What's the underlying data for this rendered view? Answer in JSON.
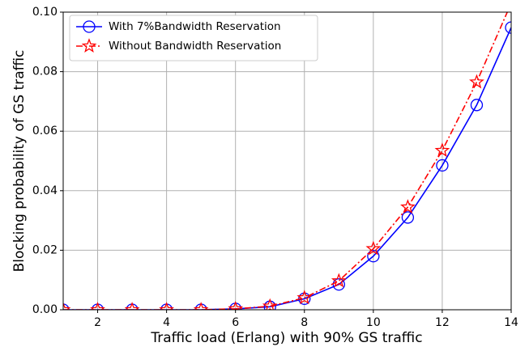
{
  "chart_data": {
    "type": "line",
    "x_label": "Traffic load (Erlang) with 90% GS traffic",
    "y_label": "Blocking probability of GS traffic",
    "x": [
      1,
      2,
      3,
      4,
      5,
      6,
      7,
      8,
      9,
      10,
      11,
      12,
      13,
      14
    ],
    "series": [
      {
        "name": "With 7%Bandwidth Reservation",
        "color": "#0000ff",
        "marker": "circle",
        "linestyle": "solid",
        "values": [
          0,
          0,
          0,
          0,
          0,
          0.0003,
          0.001,
          0.0037,
          0.0085,
          0.018,
          0.031,
          0.0485,
          0.0688,
          0.0948
        ]
      },
      {
        "name": "Without Bandwidth Reservation",
        "color": "#ff0000",
        "marker": "star",
        "linestyle": "dashdot",
        "values": [
          0,
          0,
          0,
          0,
          0,
          0.0003,
          0.0012,
          0.004,
          0.0097,
          0.0205,
          0.0345,
          0.0535,
          0.0765,
          0.103
        ]
      }
    ],
    "xlim": [
      1,
      14
    ],
    "xticks": [
      2,
      4,
      6,
      8,
      10,
      12,
      14
    ],
    "ylim": [
      0,
      0.1
    ],
    "yticks": [
      {
        "value": 0,
        "label": "0.00"
      },
      {
        "value": 0.02,
        "label": "0.02"
      },
      {
        "value": 0.04,
        "label": "0.04"
      },
      {
        "value": 0.06,
        "label": "0.06"
      },
      {
        "value": 0.08,
        "label": "0.08"
      },
      {
        "value": 0.1,
        "label": "0.10"
      }
    ],
    "grid": true,
    "legend": "upper left"
  }
}
